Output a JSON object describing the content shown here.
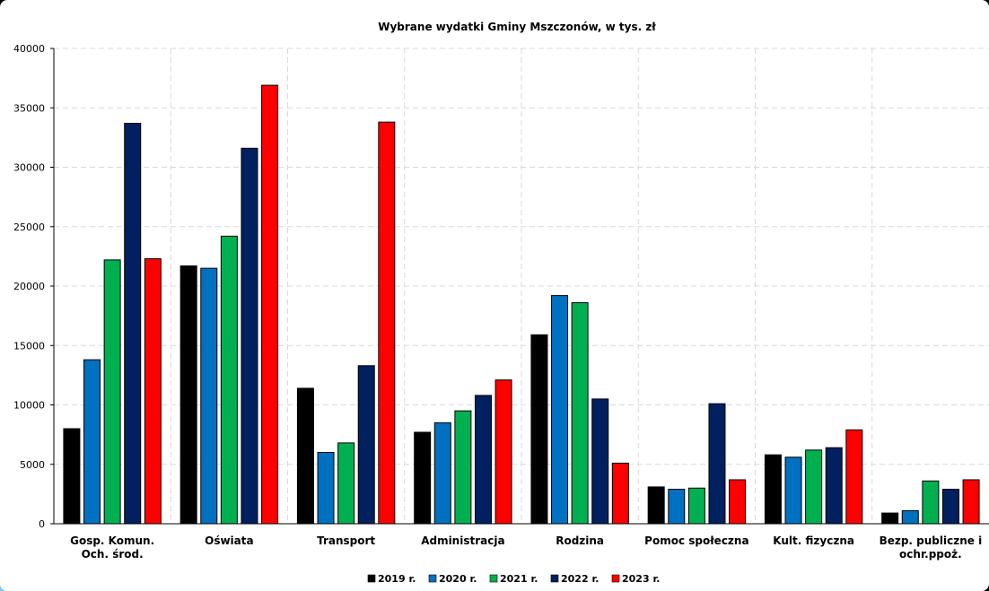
{
  "chart_data": {
    "type": "bar",
    "title": "Wybrane wydatki Gminy Mszczonów, w tys. zł",
    "xlabel": "",
    "ylabel": "",
    "ylim": [
      0,
      40000
    ],
    "yticks": [
      0,
      5000,
      10000,
      15000,
      20000,
      25000,
      30000,
      35000,
      40000
    ],
    "grid": true,
    "legend_position": "bottom",
    "categories": [
      [
        "Gosp. Komun.",
        "Och. środ."
      ],
      [
        "Oświata"
      ],
      [
        "Transport"
      ],
      [
        "Administracja"
      ],
      [
        "Rodzina"
      ],
      [
        "Pomoc społeczna"
      ],
      [
        "Kult.  fizyczna"
      ],
      [
        "Bezp. publiczne i",
        "ochr.ppoż."
      ]
    ],
    "series": [
      {
        "name": "2019 r.",
        "color": "#000000",
        "values": [
          8000,
          21700,
          11400,
          7700,
          15900,
          3100,
          5800,
          900
        ]
      },
      {
        "name": "2020 r.",
        "color": "#0070c0",
        "values": [
          13800,
          21500,
          6000,
          8500,
          19200,
          2900,
          5600,
          1100
        ]
      },
      {
        "name": "2021 r.",
        "color": "#00b050",
        "values": [
          22200,
          24200,
          6800,
          9500,
          18600,
          3000,
          6200,
          3600
        ]
      },
      {
        "name": "2022 r.",
        "color": "#002060",
        "values": [
          33700,
          31600,
          13300,
          10800,
          10500,
          10100,
          6400,
          2900
        ]
      },
      {
        "name": "2023 r.",
        "color": "#ff0000",
        "values": [
          22300,
          36900,
          33800,
          12100,
          5100,
          3700,
          7900,
          3700
        ]
      }
    ]
  }
}
